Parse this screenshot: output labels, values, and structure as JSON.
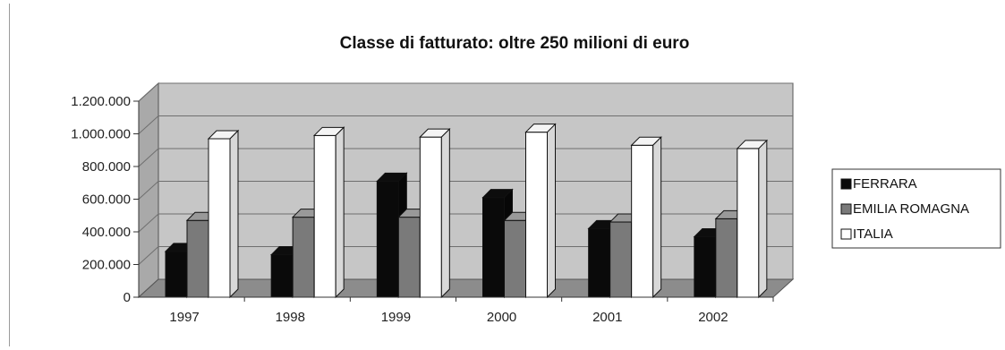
{
  "chart_data": {
    "type": "bar",
    "title": "Classe di fatturato: oltre 250 milioni di euro",
    "xlabel": "",
    "ylabel": "",
    "categories": [
      "1997",
      "1998",
      "1999",
      "2000",
      "2001",
      "2002"
    ],
    "series": [
      {
        "name": "FERRARA",
        "values": [
          280000,
          260000,
          710000,
          610000,
          420000,
          370000
        ],
        "color": "#0a0a0a"
      },
      {
        "name": "EMILIA ROMAGNA",
        "values": [
          470000,
          490000,
          490000,
          470000,
          460000,
          480000
        ],
        "color": "#7a7a7a"
      },
      {
        "name": "ITALIA",
        "values": [
          970000,
          990000,
          980000,
          1010000,
          930000,
          910000
        ],
        "color": "#ffffff"
      }
    ],
    "ylim": [
      0,
      1200000
    ],
    "yticks": [
      0,
      200000,
      400000,
      600000,
      800000,
      1000000,
      1200000
    ],
    "ytick_labels": [
      "0",
      "200.000",
      "400.000",
      "600.000",
      "800.000",
      "1.000.000",
      "1.200.000"
    ],
    "grid": true,
    "three_d": true,
    "legend_position": "right",
    "colors": {
      "wall": "#c6c6c6",
      "floor": "#8c8c8c",
      "grid": "#6f6f6f"
    }
  }
}
